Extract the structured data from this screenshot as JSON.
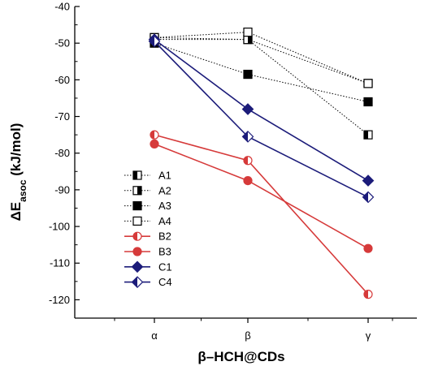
{
  "chart_data": {
    "type": "line",
    "title": "",
    "xlabel": "β–HCH@CDs",
    "ylabel_main": "ΔE",
    "ylabel_sub": "asoc",
    "ylabel_unit": " (kJ/mol)",
    "categories": [
      "α",
      "β",
      "γ"
    ],
    "ylim": [
      -125,
      -40
    ],
    "yticks": [
      "-40",
      "-50",
      "-60",
      "-70",
      "-80",
      "-90",
      "-100",
      "-110",
      "-120"
    ],
    "yticks_values": [
      -40,
      -50,
      -60,
      -70,
      -80,
      -90,
      -100,
      -110,
      -120
    ],
    "legend_position": "left",
    "series": [
      {
        "name": "A1",
        "values": [
          -48.5,
          -49.0,
          -75.0
        ],
        "color": "#000000",
        "line": "dotted",
        "marker": "square",
        "fill": "left-black"
      },
      {
        "name": "A2",
        "values": [
          -49.0,
          -49.0,
          -61.0
        ],
        "color": "#000000",
        "line": "dotted",
        "marker": "square",
        "fill": "right-black"
      },
      {
        "name": "A3",
        "values": [
          -50.0,
          -58.5,
          -66.0
        ],
        "color": "#000000",
        "line": "dotted",
        "marker": "square",
        "fill": "full"
      },
      {
        "name": "A4",
        "values": [
          -48.5,
          -47.0,
          -61.0
        ],
        "color": "#000000",
        "line": "dotted",
        "marker": "square",
        "fill": "open"
      },
      {
        "name": "B2",
        "values": [
          -75.0,
          -82.0,
          -118.5
        ],
        "color": "#d63a3a",
        "line": "solid",
        "marker": "circle",
        "fill": "half"
      },
      {
        "name": "B3",
        "values": [
          -77.5,
          -87.5,
          -106.0
        ],
        "color": "#d63a3a",
        "line": "solid",
        "marker": "circle",
        "fill": "full"
      },
      {
        "name": "C1",
        "values": [
          -49.0,
          -68.0,
          -87.5
        ],
        "color": "#1c1c7a",
        "line": "solid",
        "marker": "diamond",
        "fill": "full"
      },
      {
        "name": "C4",
        "values": [
          -49.5,
          -75.5,
          -92.0
        ],
        "color": "#1c1c7a",
        "line": "solid",
        "marker": "diamond",
        "fill": "half"
      }
    ]
  }
}
